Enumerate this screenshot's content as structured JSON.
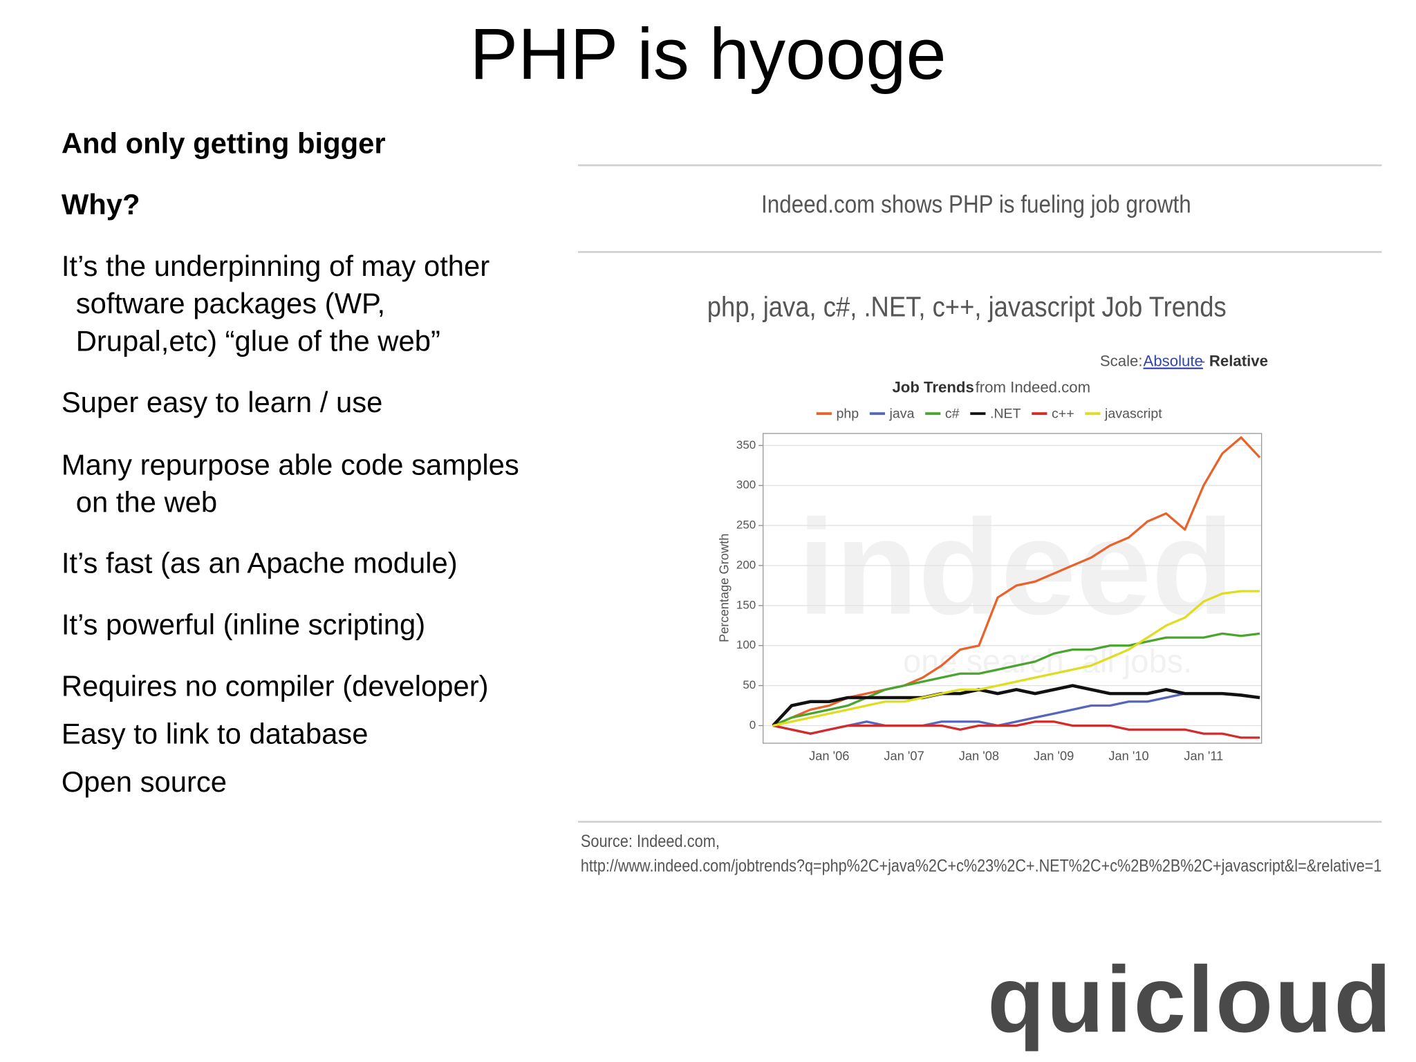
{
  "slide": {
    "title": "PHP is hyooge",
    "headings": [
      "And only getting bigger",
      "Why?"
    ],
    "points": [
      {
        "lines": [
          "It’s the underpinning of may other",
          "software packages (WP,",
          "Drupal,etc) “glue of the web”"
        ]
      },
      {
        "lines": [
          "Super easy to learn / use"
        ]
      },
      {
        "lines": [
          "Many repurpose able code samples",
          "on the web"
        ]
      },
      {
        "lines": [
          "It’s fast (as an Apache module)"
        ]
      },
      {
        "lines": [
          "It’s powerful (inline scripting)"
        ]
      },
      {
        "lines": [
          "Requires no compiler (developer)"
        ]
      },
      {
        "lines": [
          "Easy to link to database"
        ]
      },
      {
        "lines": [
          "Open source"
        ]
      }
    ],
    "caption": "Indeed.com shows PHP is fueling job growth",
    "source": [
      "Source: Indeed.com,",
      "http://www.indeed.com/jobtrends?q=php%2C+java%2C+c%23%2C+.NET%2C+c%2B%2B%2C+javascript&l=&relative=1"
    ],
    "logo": "quicloud"
  },
  "chart_data": {
    "type": "line",
    "title": "php, java, c#, .NET, c++, javascript Job Trends",
    "scale_label": "Scale:",
    "scale_absolute": "Absolute",
    "scale_separator": "-",
    "scale_relative": "Relative",
    "subtitle_bold": "Job Trends",
    "subtitle": "from Indeed.com",
    "ylabel": "Percentage Growth",
    "watermark": [
      "indeed",
      "one search. all jobs."
    ],
    "categories": [
      null,
      null,
      null,
      "Jan '06",
      null,
      null,
      null,
      "Jan '07",
      null,
      null,
      null,
      "Jan '08",
      null,
      null,
      null,
      "Jan '09",
      null,
      null,
      null,
      "Jan '10",
      null,
      null,
      null,
      "Jan '11",
      null,
      null,
      null
    ],
    "ylim": [
      -22,
      365
    ],
    "yticks": [
      0,
      50,
      100,
      150,
      200,
      250,
      300,
      350
    ],
    "grid": true,
    "series": [
      {
        "name": "php",
        "color": "#e8622a",
        "values": [
          0,
          10,
          20,
          25,
          35,
          40,
          45,
          50,
          60,
          75,
          95,
          100,
          160,
          175,
          180,
          190,
          200,
          210,
          225,
          235,
          255,
          265,
          245,
          300,
          340,
          360,
          335
        ]
      },
      {
        "name": "java",
        "color": "#5566bb",
        "values": [
          0,
          -5,
          -10,
          -5,
          0,
          5,
          0,
          0,
          0,
          5,
          5,
          5,
          0,
          5,
          10,
          15,
          20,
          25,
          25,
          30,
          30,
          35,
          40,
          40,
          40,
          38,
          35
        ]
      },
      {
        "name": "c#",
        "color": "#4aa52e",
        "values": [
          0,
          10,
          15,
          20,
          25,
          35,
          45,
          50,
          55,
          60,
          65,
          65,
          70,
          75,
          80,
          90,
          95,
          95,
          100,
          100,
          105,
          110,
          110,
          110,
          115,
          112,
          115
        ]
      },
      {
        "name": ".NET",
        "color": "#111111",
        "values": [
          0,
          25,
          30,
          30,
          35,
          35,
          35,
          35,
          35,
          40,
          40,
          45,
          40,
          45,
          40,
          45,
          50,
          45,
          40,
          40,
          40,
          45,
          40,
          40,
          40,
          38,
          35
        ]
      },
      {
        "name": "c++",
        "color": "#d42a2a",
        "values": [
          0,
          -5,
          -10,
          -5,
          0,
          0,
          0,
          0,
          0,
          0,
          -5,
          0,
          0,
          0,
          5,
          5,
          0,
          0,
          0,
          -5,
          -5,
          -5,
          -5,
          -10,
          -10,
          -15,
          -15
        ]
      },
      {
        "name": "javascript",
        "color": "#e0dc20",
        "values": [
          0,
          5,
          10,
          15,
          20,
          25,
          30,
          30,
          35,
          40,
          45,
          45,
          50,
          55,
          60,
          65,
          70,
          75,
          85,
          95,
          110,
          125,
          135,
          155,
          165,
          168,
          168
        ]
      }
    ]
  }
}
